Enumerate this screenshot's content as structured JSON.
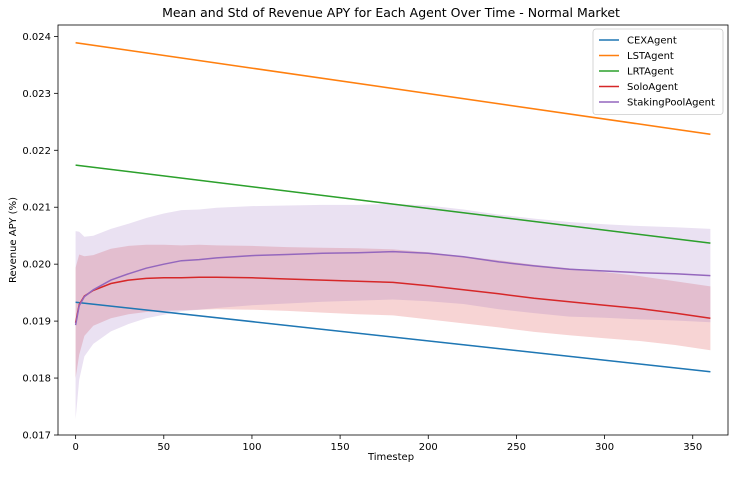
{
  "chart_data": {
    "type": "line",
    "title": "Mean and Std of Revenue APY for Each Agent Over Time - Normal Market",
    "xlabel": "Timestep",
    "ylabel": "Revenue APY (%)",
    "xlim": [
      -10,
      370
    ],
    "ylim": [
      0.017,
      0.0242
    ],
    "xticks": [
      0,
      50,
      100,
      150,
      200,
      250,
      300,
      350
    ],
    "yticks": [
      0.017,
      0.018,
      0.019,
      0.02,
      0.021,
      0.022,
      0.023,
      0.024
    ],
    "ytick_labels": [
      "0.017",
      "0.018",
      "0.019",
      "0.020",
      "0.021",
      "0.022",
      "0.023",
      "0.024"
    ],
    "legend_position": "top-right",
    "grid": false,
    "series": [
      {
        "name": "CEXAgent",
        "color": "#1f77b4",
        "x": [
          0,
          360
        ],
        "mean": [
          0.01933,
          0.01811
        ],
        "std": [
          1.2e-05,
          1.2e-05
        ]
      },
      {
        "name": "LSTAgent",
        "color": "#ff7f0e",
        "x": [
          0,
          360
        ],
        "mean": [
          0.02389,
          0.02228
        ],
        "std": [
          1.5e-05,
          1.5e-05
        ]
      },
      {
        "name": "LRTAgent",
        "color": "#2ca02c",
        "x": [
          0,
          360
        ],
        "mean": [
          0.02174,
          0.02037
        ],
        "std": [
          1.2e-05,
          1.2e-05
        ]
      },
      {
        "name": "SoloAgent",
        "color": "#d62728",
        "x": [
          0,
          2,
          5,
          10,
          20,
          30,
          40,
          50,
          60,
          70,
          80,
          100,
          120,
          140,
          160,
          180,
          200,
          220,
          240,
          260,
          280,
          300,
          320,
          340,
          360
        ],
        "mean": [
          0.01897,
          0.01929,
          0.01944,
          0.01954,
          0.01966,
          0.01972,
          0.01975,
          0.01976,
          0.01976,
          0.01977,
          0.01977,
          0.01976,
          0.01974,
          0.01972,
          0.0197,
          0.01968,
          0.01962,
          0.01955,
          0.01948,
          0.0194,
          0.01934,
          0.01928,
          0.01922,
          0.01914,
          0.01905
        ],
        "std": [
          0.00097,
          0.00088,
          0.0007,
          0.00062,
          0.00061,
          0.0006,
          0.00059,
          0.00058,
          0.00057,
          0.00057,
          0.00056,
          0.00056,
          0.00056,
          0.00057,
          0.00058,
          0.00058,
          0.00059,
          0.00059,
          0.00059,
          0.00059,
          0.00059,
          0.00058,
          0.00057,
          0.00056,
          0.00056
        ]
      },
      {
        "name": "StakingPoolAgent",
        "color": "#9467bd",
        "x": [
          0,
          2,
          5,
          10,
          20,
          30,
          40,
          50,
          60,
          70,
          80,
          100,
          120,
          140,
          160,
          180,
          200,
          220,
          240,
          260,
          280,
          300,
          320,
          340,
          360
        ],
        "mean": [
          0.01893,
          0.01927,
          0.01943,
          0.01955,
          0.01972,
          0.01983,
          0.01993,
          0.02,
          0.02006,
          0.02008,
          0.02011,
          0.02015,
          0.02017,
          0.02019,
          0.0202,
          0.02022,
          0.02019,
          0.02013,
          0.02004,
          0.01997,
          0.01991,
          0.01988,
          0.01985,
          0.01983,
          0.0198
        ],
        "std": [
          0.00165,
          0.0013,
          0.00105,
          0.00095,
          0.0009,
          0.00088,
          0.00088,
          0.00089,
          0.00089,
          0.00088,
          0.00088,
          0.00087,
          0.00086,
          0.00085,
          0.00084,
          0.00084,
          0.00084,
          0.00083,
          0.00083,
          0.00083,
          0.00083,
          0.00082,
          0.00082,
          0.00082,
          0.00082
        ]
      }
    ]
  }
}
